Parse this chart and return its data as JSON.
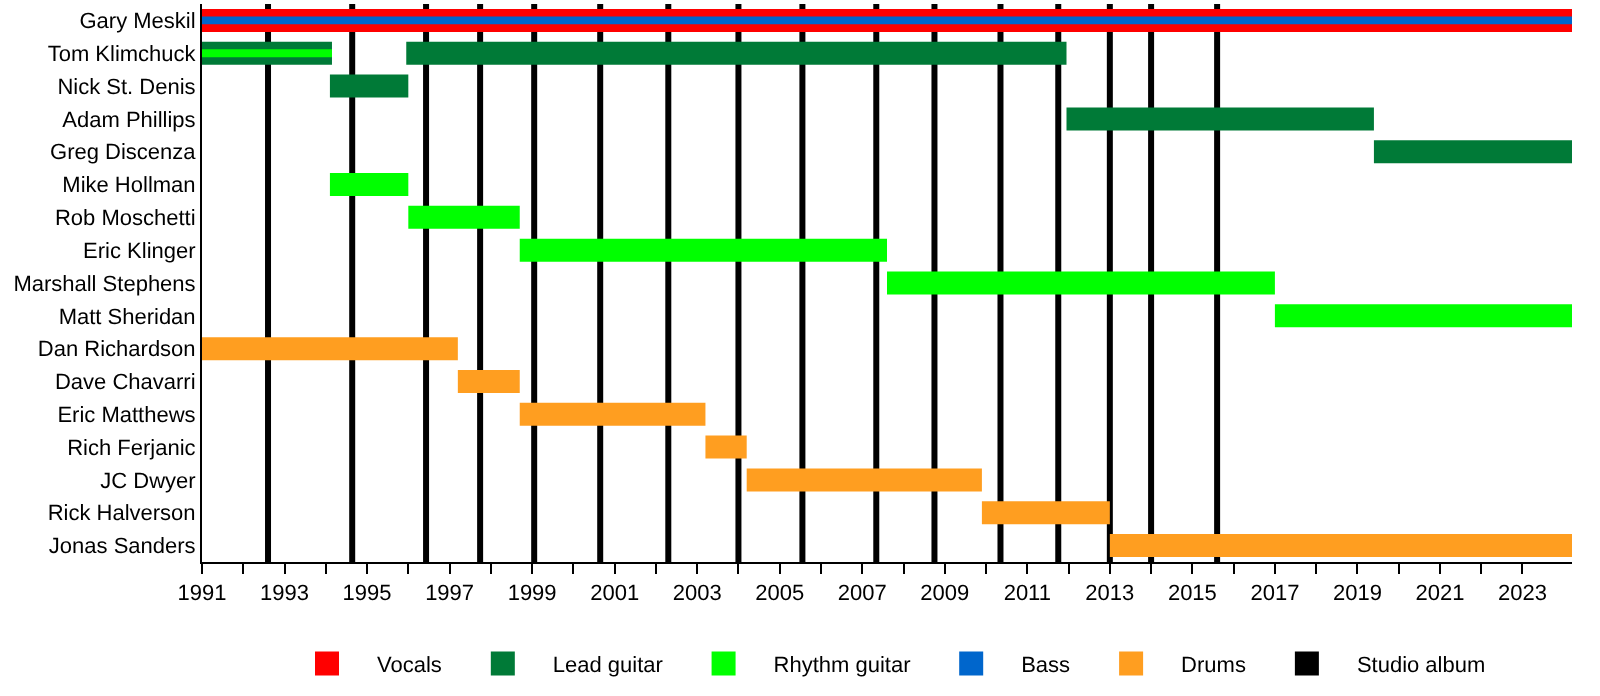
{
  "chart_data": {
    "type": "bar",
    "orientation": "horizontal",
    "legend": "bottom",
    "grid": false,
    "categories": [
      "Gary Meskil",
      "Tom Klimchuck",
      "Nick St. Denis",
      "Adam Phillips",
      "Greg Discenza",
      "Mike Hollman",
      "Rob Moschetti",
      "Eric Klinger",
      "Marshall Stephens",
      "Matt Sheridan",
      "Dan Richardson",
      "Dave Chavarri",
      "Eric Matthews",
      "Rich Ferjanic",
      "JC Dwyer",
      "Rick Halverson",
      "Jonas Sanders"
    ],
    "xlim": [
      1991,
      2024.2
    ],
    "xticks": [
      1991,
      {
        "value": 1992,
        "label": null
      },
      1993,
      {
        "value": 1994,
        "label": null
      },
      1995,
      {
        "value": 1996,
        "label": null
      },
      1997,
      {
        "value": 1998,
        "label": null
      },
      1999,
      {
        "value": 2000,
        "label": null
      },
      2001,
      {
        "value": 2002,
        "label": null
      },
      2003,
      {
        "value": 2004,
        "label": null
      },
      2005,
      {
        "value": 2006,
        "label": null
      },
      2007,
      {
        "value": 2008,
        "label": null
      },
      2009,
      {
        "value": 2010,
        "label": null
      },
      2011,
      {
        "value": 2012,
        "label": null
      },
      2013,
      {
        "value": 2014,
        "label": null
      },
      2015,
      {
        "value": 2016,
        "label": null
      },
      2017,
      {
        "value": 2018,
        "label": null
      },
      2019,
      {
        "value": 2020,
        "label": null
      },
      2021,
      {
        "value": 2022,
        "label": null
      },
      2023
    ],
    "series": [
      {
        "name": "Vocals",
        "color": "#ff0000",
        "values": [
          33.2,
          null,
          null,
          null,
          null,
          null,
          null,
          null,
          null,
          null,
          null,
          null,
          null,
          null,
          null,
          null,
          null
        ],
        "base": [
          1991,
          null,
          null,
          null,
          null,
          null,
          null,
          null,
          null,
          null,
          null,
          null,
          null,
          null,
          null,
          null,
          null
        ]
      },
      {
        "name": "Lead guitar",
        "color": "#007a37",
        "values": [
          null,
          3.15,
          1.9,
          7.45,
          4.8,
          null,
          null,
          null,
          null,
          null,
          null,
          null,
          null,
          null,
          null,
          null,
          null
        ],
        "base": [
          null,
          1991,
          1994.1,
          2011.95,
          2019.4,
          null,
          null,
          null,
          null,
          null,
          null,
          null,
          null,
          null,
          null,
          null,
          null
        ]
      },
      {
        "color": "#007a37",
        "values": [
          null,
          16.0,
          null,
          null,
          null,
          null,
          null,
          null,
          null,
          null,
          null,
          null,
          null,
          null,
          null,
          null,
          null
        ],
        "base": [
          null,
          1995.95,
          null,
          null,
          null,
          null,
          null,
          null,
          null,
          null,
          null,
          null,
          null,
          null,
          null,
          null,
          null
        ]
      },
      {
        "name": "Rhythm guitar",
        "color": "#00ff00",
        "values": [
          null,
          3.15,
          null,
          null,
          null,
          1.9,
          2.7,
          8.9,
          9.4,
          7.2,
          null,
          null,
          null,
          null,
          null,
          null,
          null
        ],
        "base": [
          null,
          1991,
          null,
          null,
          null,
          1994.1,
          1996.0,
          1998.7,
          2007.6,
          2017.0,
          null,
          null,
          null,
          null,
          null,
          null,
          null
        ]
      },
      {
        "name": "Bass",
        "color": "#0066cc",
        "values": [
          33.2,
          null,
          null,
          null,
          null,
          null,
          null,
          null,
          null,
          null,
          null,
          null,
          null,
          null,
          null,
          null,
          null
        ],
        "base": [
          1991,
          null,
          null,
          null,
          null,
          null,
          null,
          null,
          null,
          null,
          null,
          null,
          null,
          null,
          null,
          null,
          null
        ]
      },
      {
        "name": "Drums",
        "color": "#ff9e20",
        "values": [
          null,
          null,
          null,
          null,
          null,
          null,
          null,
          null,
          null,
          null,
          6.2,
          1.5,
          4.5,
          1.0,
          5.7,
          3.1,
          11.2
        ],
        "base": [
          null,
          null,
          null,
          null,
          null,
          null,
          null,
          null,
          null,
          null,
          1991,
          1997.2,
          1998.7,
          2003.2,
          2004.2,
          2009.9,
          2013.0
        ]
      }
    ],
    "ref_lines": [
      {
        "axis": "x",
        "value": 1992.6,
        "label": "Studio album",
        "color": "#000000"
      },
      {
        "axis": "x",
        "value": 1994.64,
        "label": null,
        "color": "#000000"
      },
      {
        "axis": "x",
        "value": 1996.43,
        "label": null,
        "color": "#000000"
      },
      {
        "axis": "x",
        "value": 1997.74,
        "label": null,
        "color": "#000000"
      },
      {
        "axis": "x",
        "value": 1999.05,
        "label": null,
        "color": "#000000"
      },
      {
        "axis": "x",
        "value": 2000.65,
        "label": null,
        "color": "#000000"
      },
      {
        "axis": "x",
        "value": 2002.3,
        "label": null,
        "color": "#000000"
      },
      {
        "axis": "x",
        "value": 2004.0,
        "label": null,
        "color": "#000000"
      },
      {
        "axis": "x",
        "value": 2005.55,
        "label": null,
        "color": "#000000"
      },
      {
        "axis": "x",
        "value": 2007.34,
        "label": null,
        "color": "#000000"
      },
      {
        "axis": "x",
        "value": 2008.75,
        "label": null,
        "color": "#000000"
      },
      {
        "axis": "x",
        "value": 2010.35,
        "label": null,
        "color": "#000000"
      },
      {
        "axis": "x",
        "value": 2011.75,
        "label": null,
        "color": "#000000"
      },
      {
        "axis": "x",
        "value": 2013.0,
        "label": null,
        "color": "#000000"
      },
      {
        "axis": "x",
        "value": 2014.0,
        "label": null,
        "color": "#000000"
      },
      {
        "axis": "x",
        "value": 2015.6,
        "label": null,
        "color": "#000000"
      }
    ]
  }
}
